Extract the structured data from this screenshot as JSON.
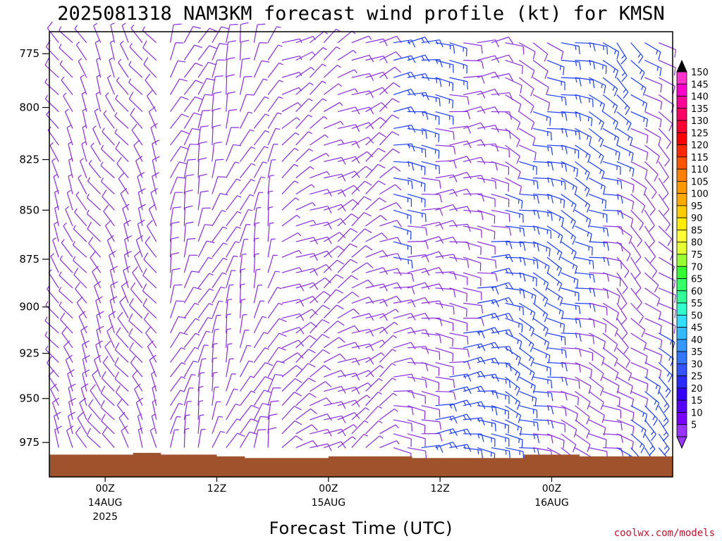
{
  "title": "2025081318 NAM3KM forecast wind profile (kt) for KMSN",
  "xlabel": "Forecast Time (UTC)",
  "credit": "coolwx.com/models",
  "y_ticks": [
    "775",
    "800",
    "825",
    "850",
    "875",
    "900",
    "925",
    "950",
    "975"
  ],
  "x_ticks": [
    {
      "hour": "00Z",
      "date": "14AUG",
      "year": "2025"
    },
    {
      "hour": "12Z",
      "date": "",
      "year": ""
    },
    {
      "hour": "00Z",
      "date": "15AUG",
      "year": ""
    },
    {
      "hour": "12Z",
      "date": "",
      "year": ""
    },
    {
      "hour": "00Z",
      "date": "16AUG",
      "year": ""
    }
  ],
  "colorbar": {
    "labels": [
      "150",
      "145",
      "140",
      "135",
      "130",
      "125",
      "120",
      "115",
      "110",
      "105",
      "100",
      "95",
      "90",
      "85",
      "80",
      "75",
      "70",
      "65",
      "60",
      "55",
      "50",
      "45",
      "40",
      "35",
      "30",
      "25",
      "20",
      "15",
      "10",
      "5"
    ],
    "colors": [
      "#ff33cc",
      "#ff00cc",
      "#ff0099",
      "#ff0066",
      "#ff0033",
      "#ff0000",
      "#ff2a00",
      "#ff5500",
      "#ff7f00",
      "#ff9900",
      "#ffaa00",
      "#ffcc00",
      "#ffee00",
      "#ffff33",
      "#e6ff33",
      "#99ff33",
      "#33ff33",
      "#33ff66",
      "#33ff99",
      "#33ffcc",
      "#33ddff",
      "#33bbff",
      "#3399ff",
      "#3377ff",
      "#3355ff",
      "#2a2aff",
      "#3300ff",
      "#5500ff",
      "#7700ff",
      "#9933ff"
    ],
    "top_arrow_color": "#000000",
    "bottom_arrow_color": "#9933ff"
  },
  "colors": {
    "barb_purple": "#8a2be2",
    "barb_blue": "#1a3cff",
    "terrain": "#a0522d"
  },
  "chart_data": {
    "type": "wind_barb_time_height",
    "title": "2025081318 NAM3KM forecast wind profile (kt) for KMSN",
    "xlabel": "Forecast Time (UTC)",
    "ylabel": "",
    "x_range_hours": [
      -6,
      61
    ],
    "y_range_hPa": [
      765,
      995
    ],
    "y_scale": "log-pressure",
    "levels_hPa": [
      775,
      800,
      825,
      850,
      875,
      900,
      925,
      950,
      975
    ],
    "speed_units": "kt",
    "wind_field_note": "barbs on a regular time-pressure grid; direction/speed estimated",
    "regimes": [
      {
        "hours": [
          -6,
          6
        ],
        "dir_deg": 330,
        "speed_kt": 10
      },
      {
        "hours": [
          6,
          18
        ],
        "dir_deg": 20,
        "speed_kt": 10
      },
      {
        "hours": [
          18,
          30
        ],
        "dir_deg": 60,
        "speed_kt": 10
      },
      {
        "hours": [
          30,
          42
        ],
        "dir_deg": 90,
        "speed_kt": 15
      },
      {
        "hours": [
          42,
          54
        ],
        "dir_deg": 110,
        "speed_kt": 15
      },
      {
        "hours": [
          54,
          61
        ],
        "dir_deg": 130,
        "speed_kt": 15
      }
    ],
    "surface_pressure_hPa": [
      {
        "hour": -6,
        "p": 982
      },
      {
        "hour": 3,
        "p": 981
      },
      {
        "hour": 6,
        "p": 982
      },
      {
        "hour": 12,
        "p": 983
      },
      {
        "hour": 15,
        "p": 984
      },
      {
        "hour": 24,
        "p": 983
      },
      {
        "hour": 33,
        "p": 984
      },
      {
        "hour": 42,
        "p": 984
      },
      {
        "hour": 45,
        "p": 982
      },
      {
        "hour": 51,
        "p": 983
      },
      {
        "hour": 61,
        "p": 984
      }
    ]
  }
}
